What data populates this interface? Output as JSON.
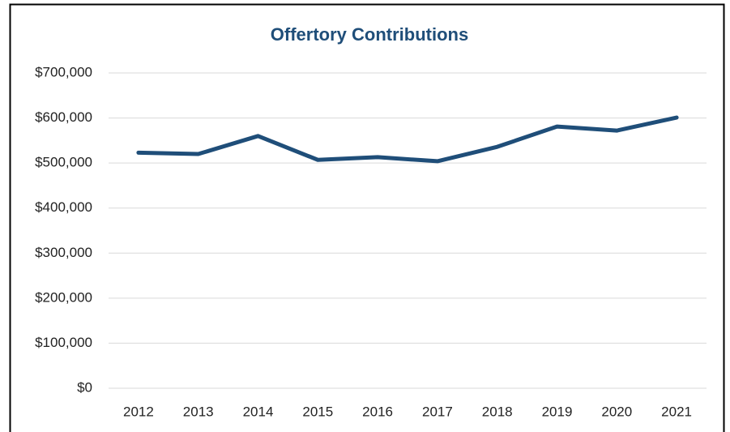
{
  "chart_data": {
    "type": "line",
    "title": "Offertory Contributions",
    "categories": [
      "2012",
      "2013",
      "2014",
      "2015",
      "2016",
      "2017",
      "2018",
      "2019",
      "2020",
      "2021"
    ],
    "series": [
      {
        "name": "Offertory Contributions",
        "color": "#1f4e79",
        "values": [
          523000,
          520000,
          560000,
          507000,
          513000,
          504000,
          536000,
          581000,
          572000,
          601000
        ]
      }
    ],
    "ylim": [
      0,
      700000
    ],
    "yticks": [
      {
        "value": 0,
        "label": "$0"
      },
      {
        "value": 100000,
        "label": "$100,000"
      },
      {
        "value": 200000,
        "label": "$200,000"
      },
      {
        "value": 300000,
        "label": "$300,000"
      },
      {
        "value": 400000,
        "label": "$400,000"
      },
      {
        "value": 500000,
        "label": "$500,000"
      },
      {
        "value": 600000,
        "label": "$600,000"
      },
      {
        "value": 700000,
        "label": "$700,000"
      }
    ],
    "grid": true
  }
}
